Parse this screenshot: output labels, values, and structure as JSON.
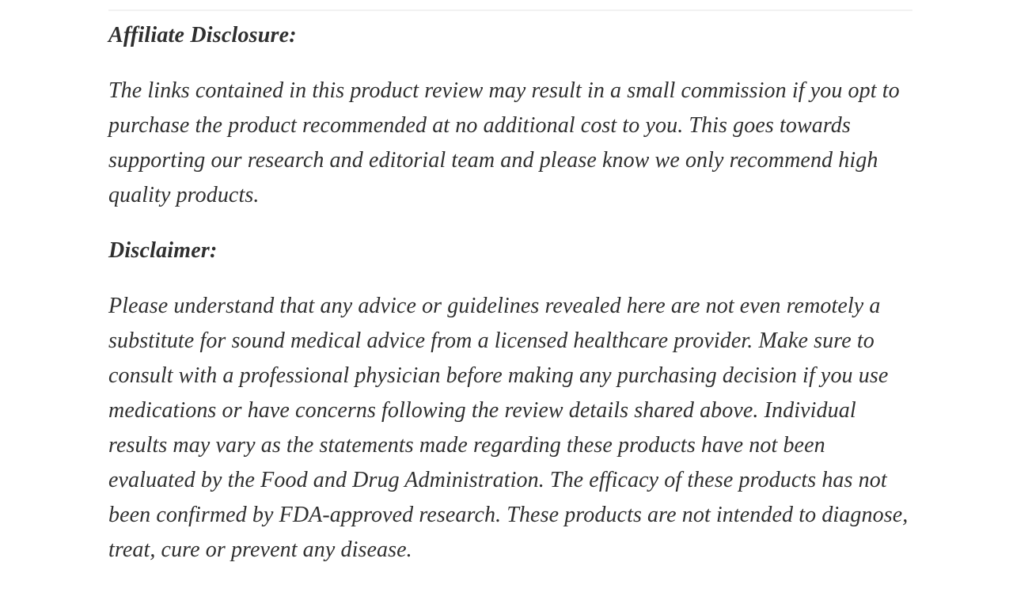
{
  "page": {
    "background_color": "#ffffff",
    "divider_color": "#f2f2f2",
    "text_color": "#2f2f2f"
  },
  "content": {
    "affiliate": {
      "heading": "Affiliate Disclosure:",
      "body": "The links contained in this product review may result in a small commission if you opt to purchase the product recommended at no additional cost to you. This goes towards supporting our research and editorial team and please know we only recommend high quality products."
    },
    "disclaimer": {
      "heading": "Disclaimer:",
      "body": "Please understand that any advice or guidelines revealed here are not even remotely a substitute for sound medical advice from a licensed healthcare provider. Make sure to consult with a professional physician before making any purchasing decision if you use medications or have concerns following the review details shared above. Individual results may vary as the statements made regarding these products have not been evaluated by the Food and Drug Administration. The efficacy of these products has not been confirmed by FDA-approved research. These products are not intended to diagnose, treat, cure or prevent any disease."
    }
  }
}
